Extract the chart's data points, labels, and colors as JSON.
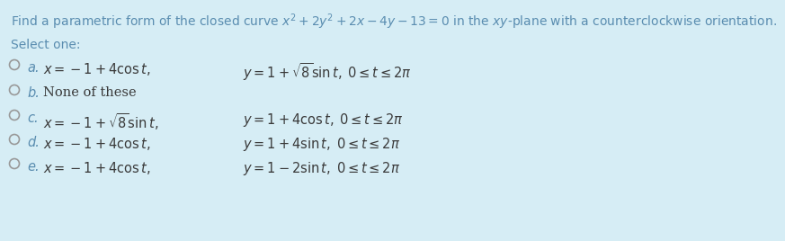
{
  "background_color": "#d6edf5",
  "title_plain": "Find a parametric form of the closed curve ",
  "title_math": "$x^2 + 2y^2 + 2x - 4y - 13 = 0$",
  "title_plain2": " in the ",
  "title_math2": "$xy$",
  "title_plain3": "-plane with a counterclockwise orientation.",
  "title_color": "#5a8db0",
  "title_fontsize": 10.0,
  "select_one": "Select one:",
  "select_color": "#5a8db0",
  "select_fontsize": 10.0,
  "options": [
    {
      "label": "a.",
      "text1": "$x = -1 + 4\\cos t,$",
      "text2": "$y = 1 + \\sqrt{8}\\sin t,\\; 0 \\leq t \\leq 2\\pi$"
    },
    {
      "label": "b.",
      "text1": "None of these",
      "text2": ""
    },
    {
      "label": "c.",
      "text1": "$x = -1 + \\sqrt{8}\\sin t,$",
      "text2": "$y = 1 + 4\\cos t,\\; 0 \\leq t \\leq 2\\pi$"
    },
    {
      "label": "d.",
      "text1": "$x = -1 + 4\\cos t,$",
      "text2": "$y = 1 + 4\\sin t,\\; 0 \\leq t \\leq 2\\pi$"
    },
    {
      "label": "e.",
      "text1": "$x = -1 + 4\\cos t,$",
      "text2": "$y = 1 - 2\\sin t,\\; 0 \\leq t \\leq 2\\pi$"
    }
  ],
  "math_color": "#3a3a3a",
  "label_color": "#5a8db0",
  "option_fontsize": 10.5,
  "circle_color": "#999999",
  "circle_linewidth": 1.2
}
